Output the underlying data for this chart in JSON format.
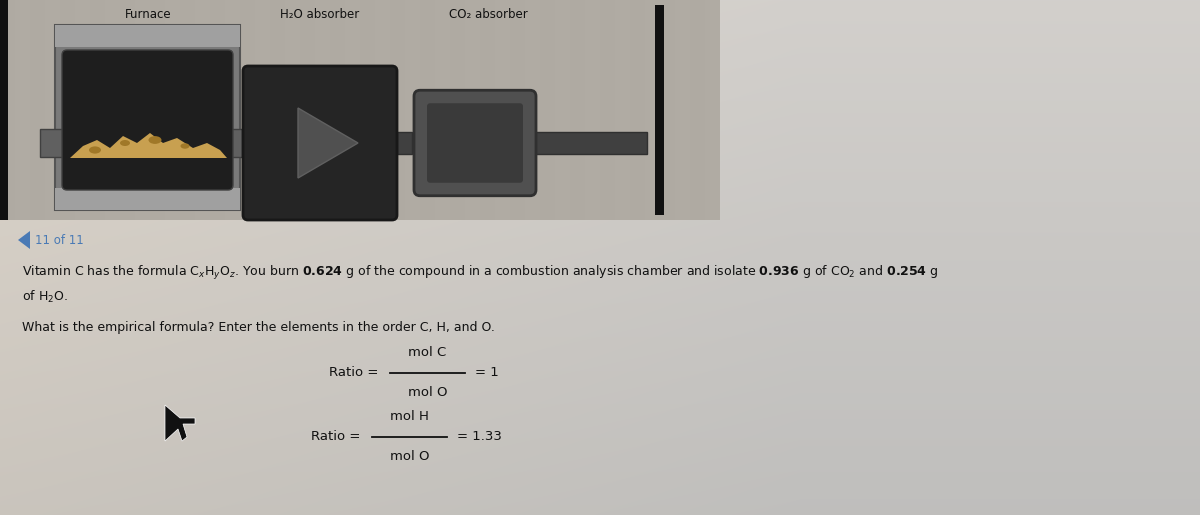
{
  "bg_color_top": "#ddd8d0",
  "bg_color_bottom": "#c8bfb0",
  "page_bg_left": "#f0ede8",
  "page_bg_right": "#d8d0c8",
  "nav_text": "11 of 11",
  "nav_color": "#4a7ab5",
  "line1": "Vitamin C has the formula C",
  "line1_sub1": "x",
  "line1_c2": "H",
  "line1_sub2": "y",
  "line1_c3": "O",
  "line1_sub3": "z",
  "line1_end": ". You burn ",
  "line1_bold1": "0.624",
  "line1_mid": " g of the compound in a combustion analysis chamber and isolate ",
  "line1_bold2": "0.936",
  "line1_mid2": " g of CO",
  "line1_sub4": "2",
  "line1_mid3": " and ",
  "line1_bold3": "0.254",
  "line1_mid4": " g",
  "line2": "of H",
  "line2_sub": "2",
  "line2_end": "O.",
  "question": "What is the empirical formula? Enter the elements in the order C, H, and O.",
  "ratio1_label": "Ratio =",
  "ratio1_num": "mol C",
  "ratio1_den": "mol O",
  "ratio1_val": "= 1",
  "ratio2_label": "Ratio =",
  "ratio2_num": "mol H",
  "ratio2_den": "mol O",
  "ratio2_val": "= 1.33",
  "furnace_label": "Furnace",
  "h2o_label": "H₂O absorber",
  "co2_label": "CO₂ absorber",
  "img_bg_color": "#b8b4ac",
  "furnace_outer": "#808080",
  "furnace_inner": "#505050",
  "furnace_dark": "#282828",
  "tube_color": "#606060",
  "arrow_color": "#303030",
  "absorber_color": "#404040",
  "absorber_light": "#686868",
  "bar_color": "#222222",
  "text_color": "#1a1a1a",
  "bold_color": "#000000"
}
